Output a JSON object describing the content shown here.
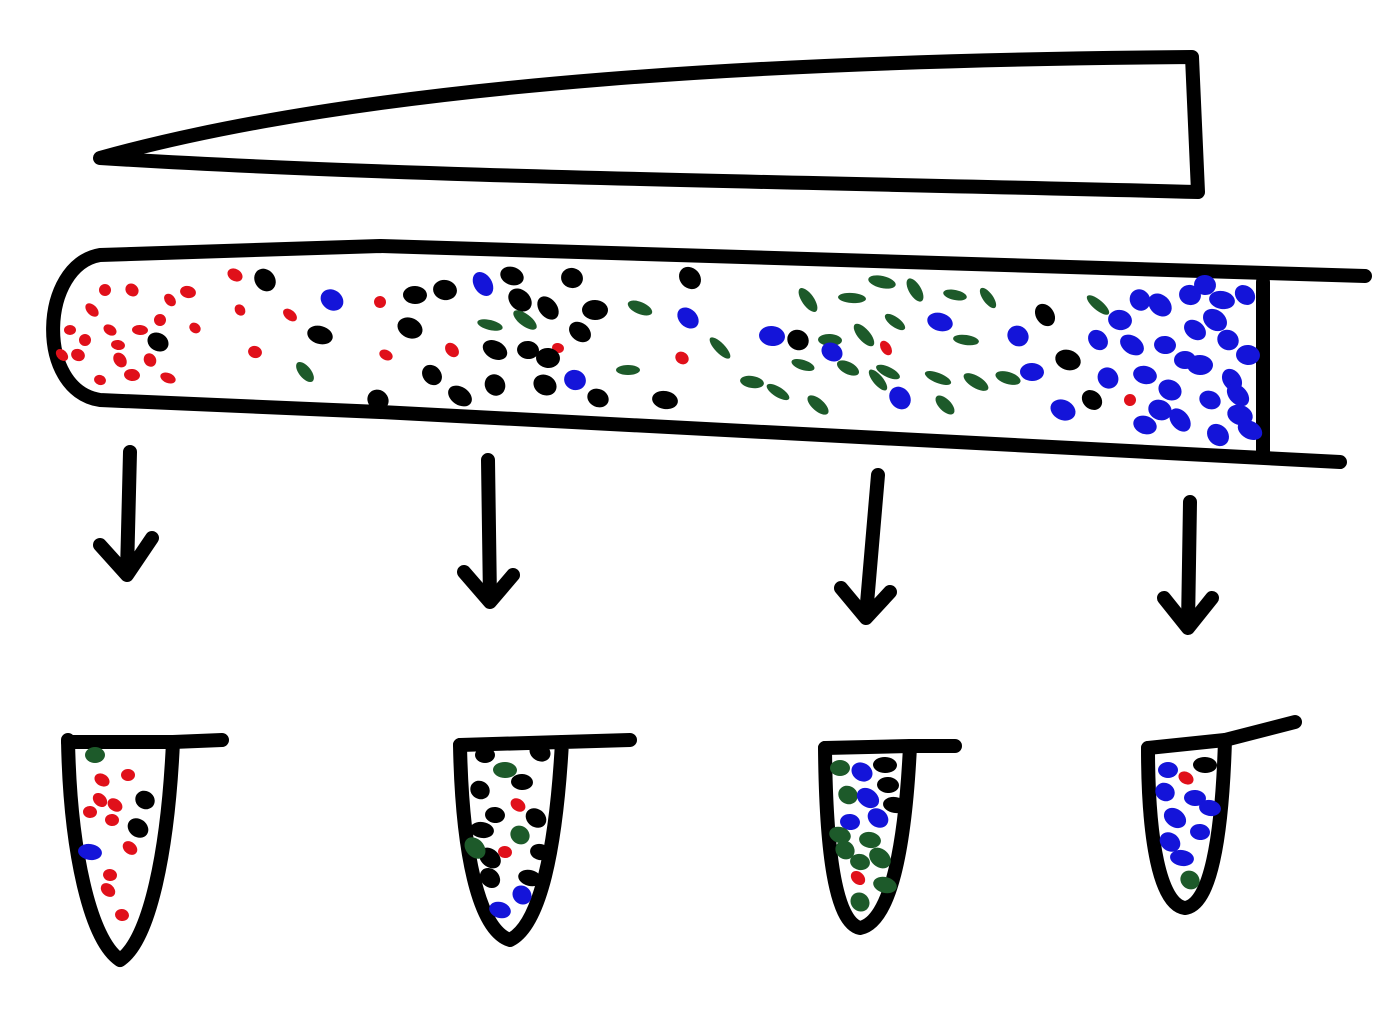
{
  "colors": {
    "ink": "#000000",
    "background": "#ffffff",
    "red": "#e0101a",
    "black": "#000000",
    "green": "#1d5a2a",
    "blue": "#1414d9"
  },
  "components": {
    "wedge_shape": "tapered-blade",
    "gel_tube_shape": "long-tube",
    "arrow_count": 4,
    "fraction_tube_count": 4
  },
  "particle_colors": [
    "red",
    "black",
    "green",
    "blue"
  ]
}
